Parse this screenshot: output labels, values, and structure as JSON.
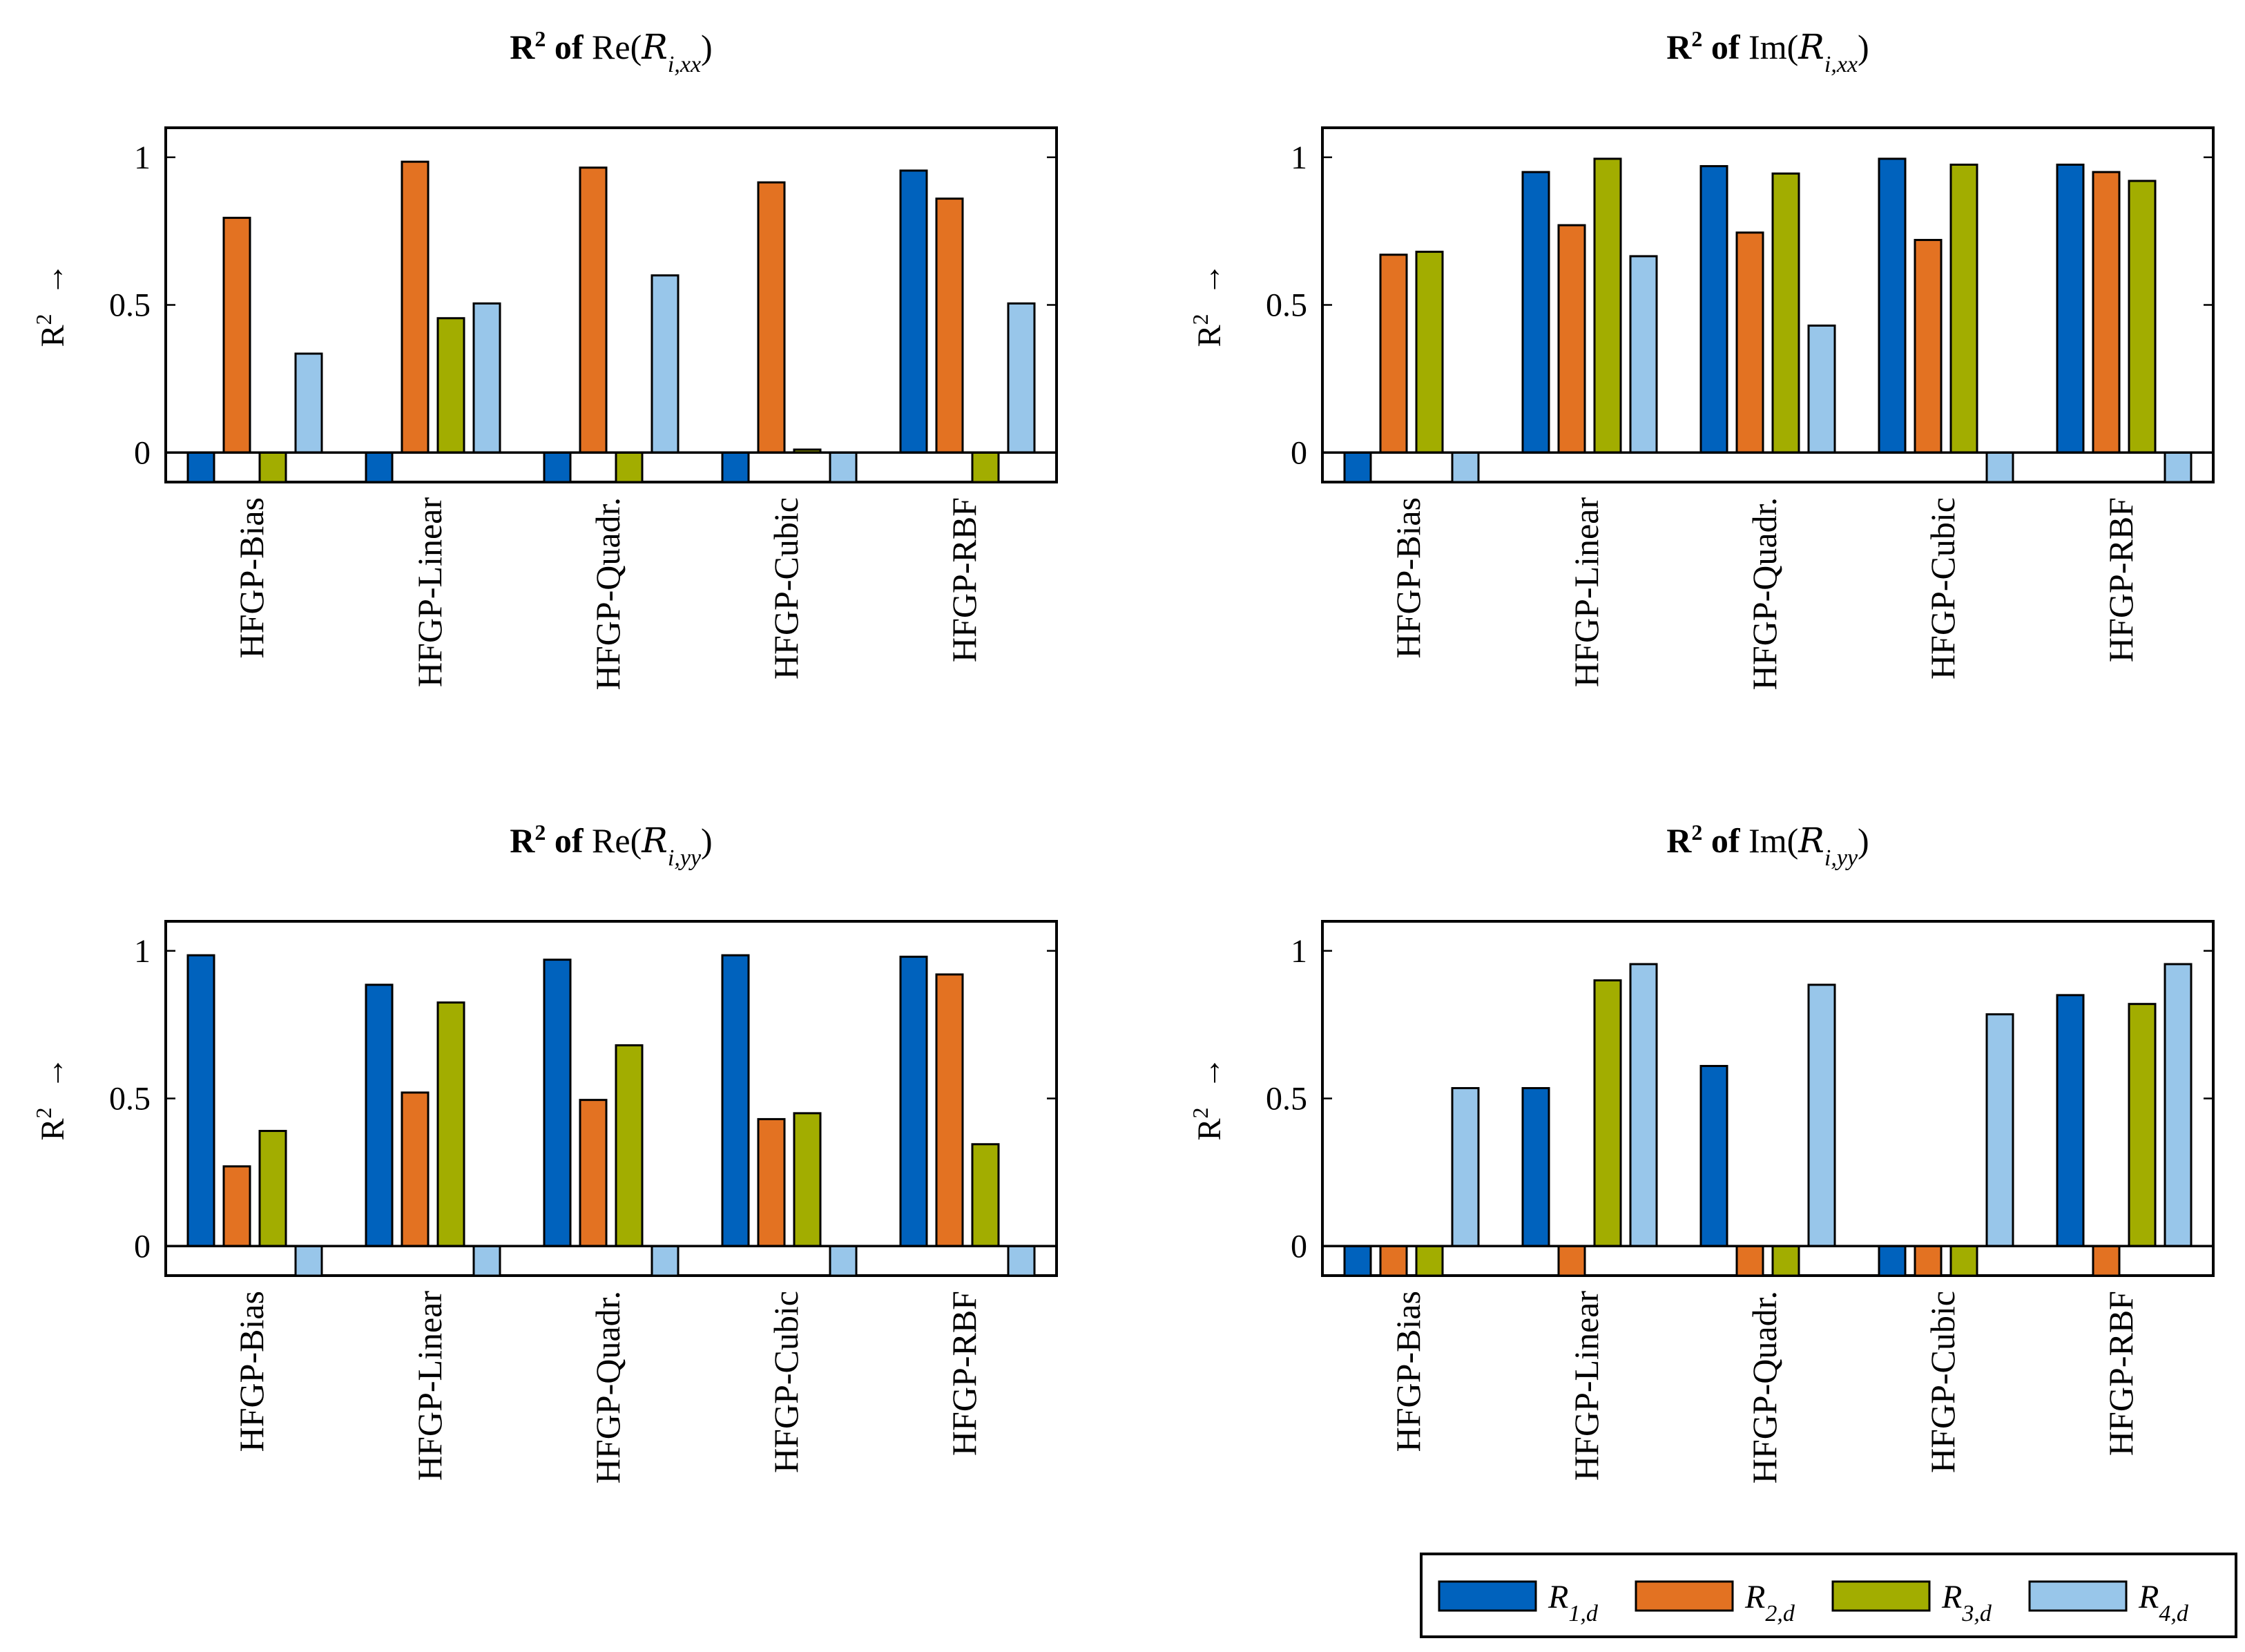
{
  "legend": {
    "entries": [
      {
        "main": "R",
        "sub": "1,d",
        "color": "#0062BD"
      },
      {
        "main": "R",
        "sub": "2,d",
        "color": "#E37222"
      },
      {
        "main": "R",
        "sub": "3,d",
        "color": "#A2AD00"
      },
      {
        "main": "R",
        "sub": "4,d",
        "color": "#98C6EA"
      }
    ]
  },
  "chart_data": [
    {
      "type": "bar",
      "title_parts": {
        "bold": "R",
        "bold_sup": "2",
        "bold_of": " of ",
        "func": "Re(",
        "script": "R",
        "script_sub": "i,xx",
        "close": ")"
      },
      "ylabel": "R",
      "ylabel_sup": "2",
      "ylabel_arrow": "→",
      "ylim": [
        -0.1,
        1.1
      ],
      "yticks": [
        0,
        0.5,
        1
      ],
      "ytick_labels": [
        "0",
        "0.5",
        "1"
      ],
      "categories": [
        "HFGP-Bias",
        "HFGP-Linear",
        "HFGP-Quadr.",
        "HFGP-Cubic",
        "HFGP-RBF"
      ],
      "series": [
        {
          "name": "R1,d",
          "values": [
            -0.1,
            -0.1,
            -0.1,
            -0.1,
            0.955
          ]
        },
        {
          "name": "R2,d",
          "values": [
            0.795,
            0.985,
            0.965,
            0.915,
            0.86
          ]
        },
        {
          "name": "R3,d",
          "values": [
            -0.1,
            0.455,
            -0.1,
            0.01,
            -0.1
          ]
        },
        {
          "name": "R4,d",
          "values": [
            0.335,
            0.505,
            0.6,
            -0.1,
            0.505
          ]
        }
      ]
    },
    {
      "type": "bar",
      "title_parts": {
        "bold": "R",
        "bold_sup": "2",
        "bold_of": " of ",
        "func": "Im(",
        "script": "R",
        "script_sub": "i,xx",
        "close": ")"
      },
      "ylabel": "R",
      "ylabel_sup": "2",
      "ylabel_arrow": "→",
      "ylim": [
        -0.1,
        1.1
      ],
      "yticks": [
        0,
        0.5,
        1
      ],
      "ytick_labels": [
        "0",
        "0.5",
        "1"
      ],
      "categories": [
        "HFGP-Bias",
        "HFGP-Linear",
        "HFGP-Quadr.",
        "HFGP-Cubic",
        "HFGP-RBF"
      ],
      "series": [
        {
          "name": "R1,d",
          "values": [
            -0.1,
            0.95,
            0.97,
            0.995,
            0.975
          ]
        },
        {
          "name": "R2,d",
          "values": [
            0.67,
            0.77,
            0.745,
            0.72,
            0.95
          ]
        },
        {
          "name": "R3,d",
          "values": [
            0.68,
            0.995,
            0.945,
            0.975,
            0.92
          ]
        },
        {
          "name": "R4,d",
          "values": [
            -0.1,
            0.665,
            0.43,
            -0.1,
            -0.1
          ]
        }
      ]
    },
    {
      "type": "bar",
      "title_parts": {
        "bold": "R",
        "bold_sup": "2",
        "bold_of": " of ",
        "func": "Re(",
        "script": "R",
        "script_sub": "i,yy",
        "close": ")"
      },
      "ylabel": "R",
      "ylabel_sup": "2",
      "ylabel_arrow": "→",
      "ylim": [
        -0.1,
        1.1
      ],
      "yticks": [
        0,
        0.5,
        1
      ],
      "ytick_labels": [
        "0",
        "0.5",
        "1"
      ],
      "categories": [
        "HFGP-Bias",
        "HFGP-Linear",
        "HFGP-Quadr.",
        "HFGP-Cubic",
        "HFGP-RBF"
      ],
      "series": [
        {
          "name": "R1,d",
          "values": [
            0.985,
            0.885,
            0.97,
            0.985,
            0.98
          ]
        },
        {
          "name": "R2,d",
          "values": [
            0.27,
            0.52,
            0.495,
            0.43,
            0.92
          ]
        },
        {
          "name": "R3,d",
          "values": [
            0.39,
            0.825,
            0.68,
            0.45,
            0.345
          ]
        },
        {
          "name": "R4,d",
          "values": [
            -0.1,
            -0.1,
            -0.1,
            -0.1,
            -0.1
          ]
        }
      ]
    },
    {
      "type": "bar",
      "title_parts": {
        "bold": "R",
        "bold_sup": "2",
        "bold_of": " of ",
        "func": "Im(",
        "script": "R",
        "script_sub": "i,yy",
        "close": ")"
      },
      "ylabel": "R",
      "ylabel_sup": "2",
      "ylabel_arrow": "→",
      "ylim": [
        -0.1,
        1.1
      ],
      "yticks": [
        0,
        0.5,
        1
      ],
      "ytick_labels": [
        "0",
        "0.5",
        "1"
      ],
      "categories": [
        "HFGP-Bias",
        "HFGP-Linear",
        "HFGP-Quadr.",
        "HFGP-Cubic",
        "HFGP-RBF"
      ],
      "series": [
        {
          "name": "R1,d",
          "values": [
            -0.1,
            0.535,
            0.61,
            -0.1,
            0.85
          ]
        },
        {
          "name": "R2,d",
          "values": [
            -0.1,
            -0.1,
            -0.1,
            -0.1,
            -0.1
          ]
        },
        {
          "name": "R3,d",
          "values": [
            -0.1,
            0.9,
            -0.1,
            -0.1,
            0.82
          ]
        },
        {
          "name": "R4,d",
          "values": [
            0.535,
            0.955,
            0.885,
            0.785,
            0.955
          ]
        }
      ]
    }
  ]
}
